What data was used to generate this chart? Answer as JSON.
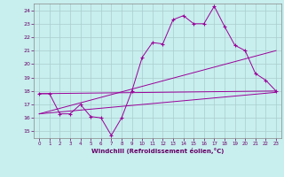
{
  "xlabel": "Windchill (Refroidissement éolien,°C)",
  "bg_color": "#c8eeee",
  "grid_color": "#aacccc",
  "line_color": "#990099",
  "xlim": [
    -0.5,
    23.5
  ],
  "ylim": [
    14.5,
    24.5
  ],
  "yticks": [
    15,
    16,
    17,
    18,
    19,
    20,
    21,
    22,
    23,
    24
  ],
  "xticks": [
    0,
    1,
    2,
    3,
    4,
    5,
    6,
    7,
    8,
    9,
    10,
    11,
    12,
    13,
    14,
    15,
    16,
    17,
    18,
    19,
    20,
    21,
    22,
    23
  ],
  "series1_x": [
    0,
    1,
    2,
    3,
    4,
    5,
    6,
    7,
    8,
    9,
    10,
    11,
    12,
    13,
    14,
    15,
    16,
    17,
    18,
    19,
    20,
    21,
    22,
    23
  ],
  "series1_y": [
    17.8,
    17.8,
    16.3,
    16.3,
    17.0,
    16.1,
    16.0,
    14.7,
    16.0,
    18.0,
    20.5,
    21.6,
    21.5,
    23.3,
    23.6,
    23.0,
    23.0,
    24.3,
    22.8,
    21.4,
    21.0,
    19.3,
    18.8,
    18.0
  ],
  "series2_x": [
    0,
    23
  ],
  "series2_y": [
    17.8,
    18.0
  ],
  "series3_x": [
    0,
    23
  ],
  "series3_y": [
    16.3,
    21.0
  ],
  "series4_x": [
    0,
    23
  ],
  "series4_y": [
    16.3,
    17.9
  ]
}
